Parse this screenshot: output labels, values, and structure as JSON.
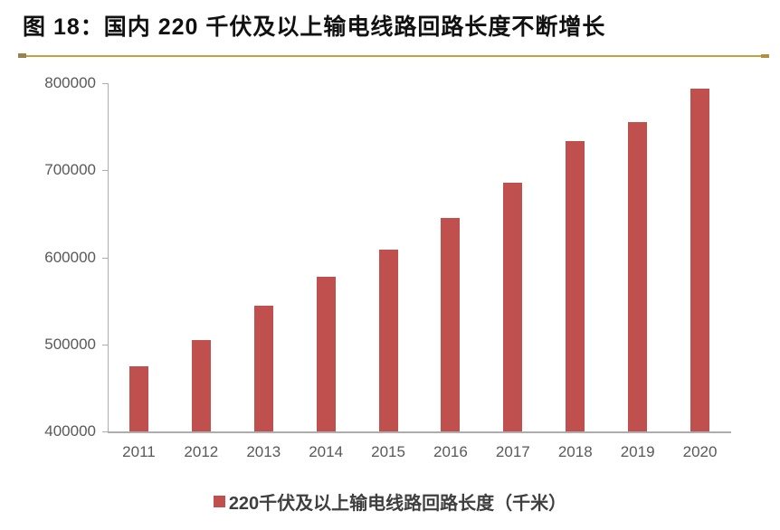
{
  "header": {
    "title": "图 18：国内 220 千伏及以上输电线路回路长度不断增长"
  },
  "colors": {
    "bar": "#C0504D",
    "axis": "#ADADAD",
    "tick_text": "#595959",
    "title_text": "#111111",
    "legend_text": "#3F3F3F",
    "separator_gold": "#C6A13E",
    "separator_cap": "#99834C"
  },
  "chart_data": {
    "type": "bar",
    "title": "图 18：国内 220 千伏及以上输电线路回路长度不断增长",
    "categories": [
      "2011",
      "2012",
      "2013",
      "2014",
      "2015",
      "2016",
      "2017",
      "2018",
      "2019",
      "2020"
    ],
    "values": [
      475000,
      505000,
      544000,
      578000,
      609000,
      645000,
      686000,
      734000,
      755000,
      794000
    ],
    "legend": "220千伏及以上输电线路回路长度（千米）",
    "xlabel": "",
    "ylabel": "",
    "ylim": [
      400000,
      800000
    ],
    "yticks": [
      400000,
      500000,
      600000,
      700000,
      800000
    ],
    "grid": false,
    "legend_position": "bottom-center"
  }
}
